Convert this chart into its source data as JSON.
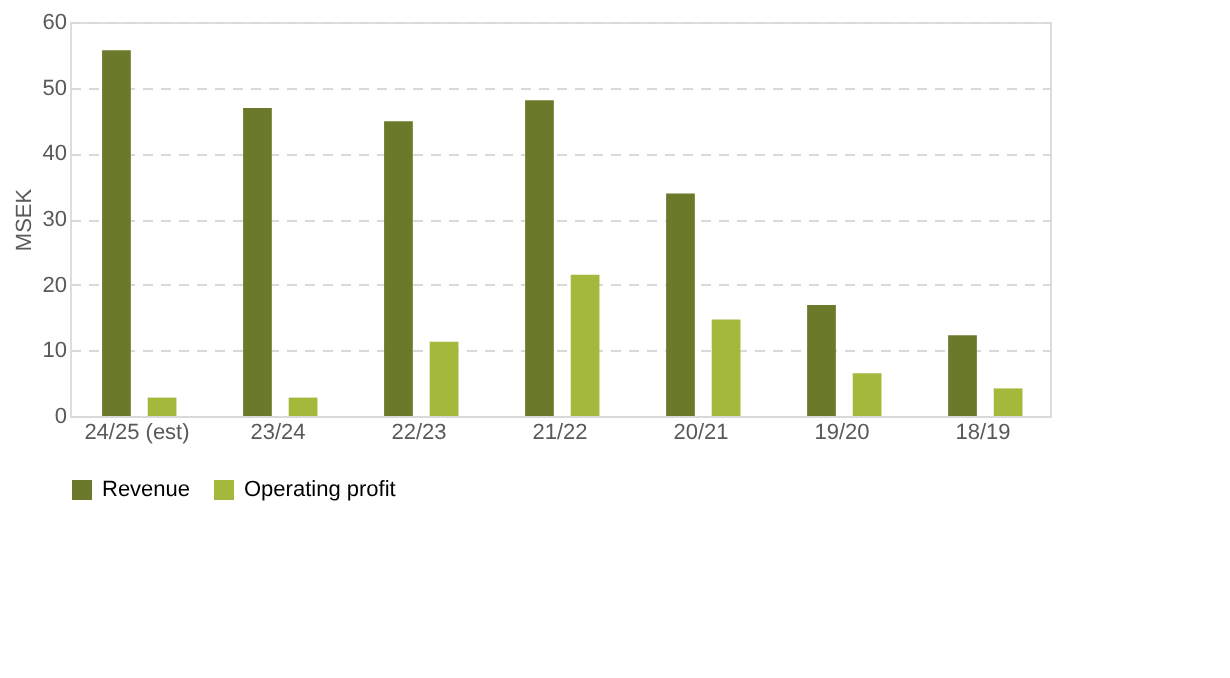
{
  "chart_data": {
    "type": "bar",
    "ylabel": "MSEK",
    "categories": [
      "24/25 (est)",
      "23/24",
      "22/23",
      "21/22",
      "20/21",
      "19/20",
      "18/19"
    ],
    "series": [
      {
        "name": "Revenue",
        "color": "#6b7a2a",
        "values": [
          55.7,
          46.9,
          44.9,
          48.1,
          33.9,
          16.9,
          12.3
        ]
      },
      {
        "name": "Operating profit",
        "color": "#a4b83c",
        "values": [
          2.8,
          2.8,
          11.3,
          21.5,
          14.7,
          6.5,
          4.2
        ]
      }
    ],
    "ylim": [
      0,
      60
    ],
    "yticks": [
      0,
      10,
      20,
      30,
      40,
      50,
      60
    ],
    "grid": "y",
    "legend": "bottom"
  }
}
